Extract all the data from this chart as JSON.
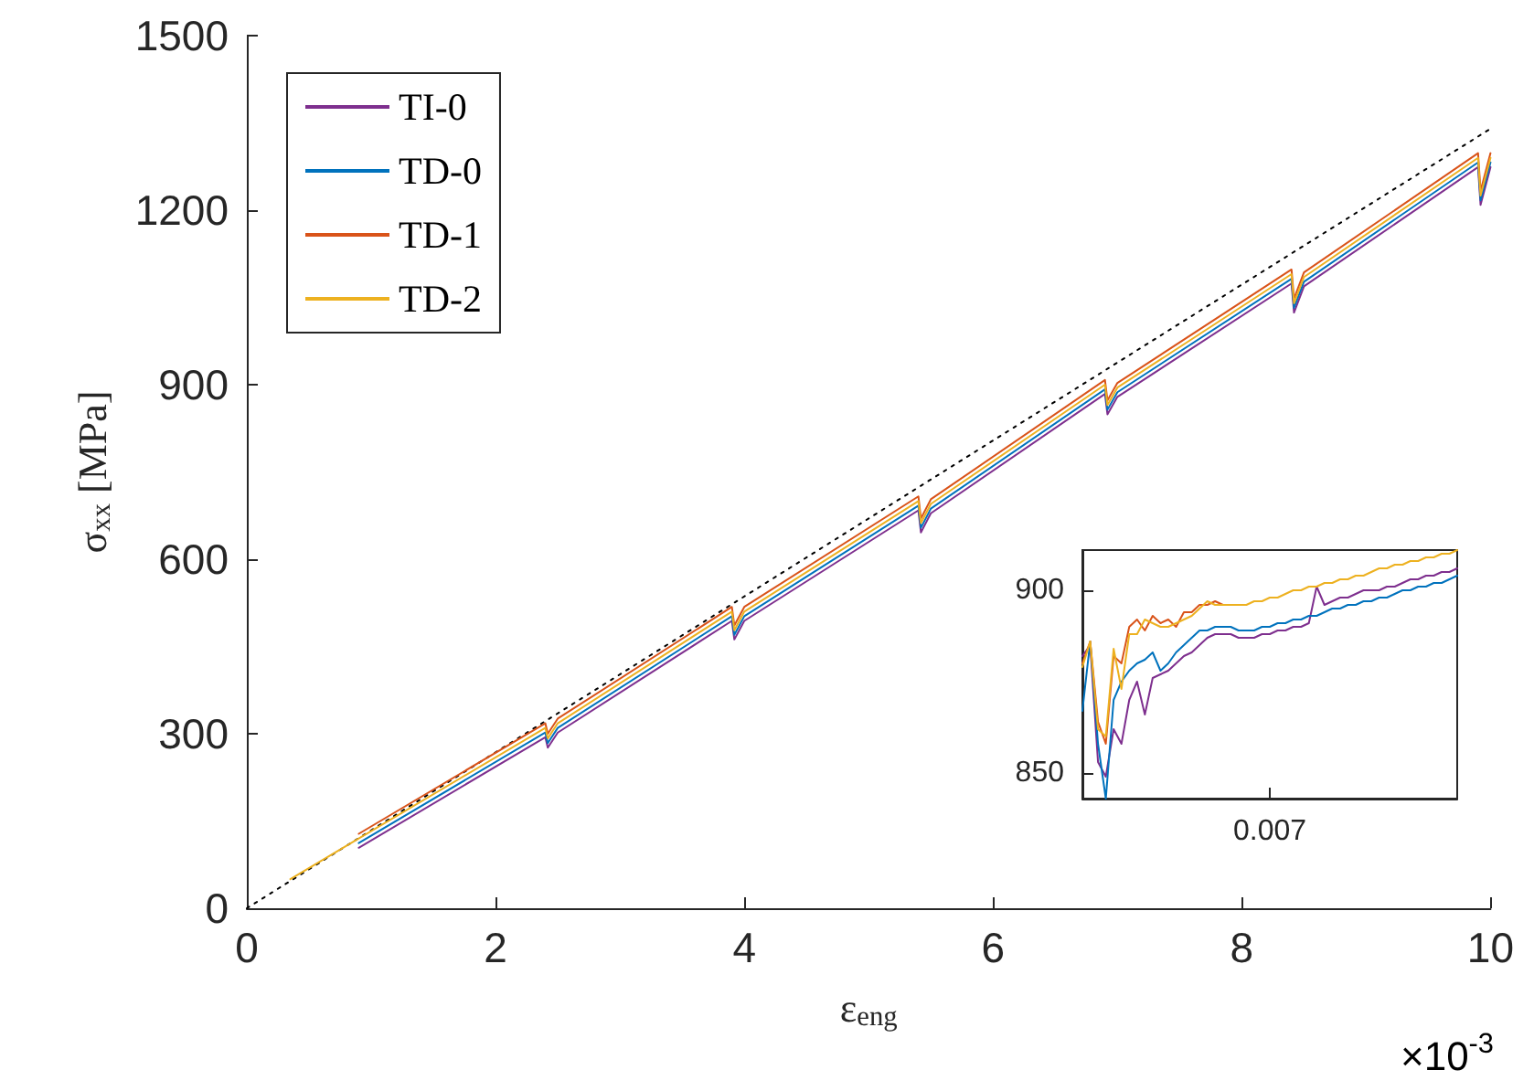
{
  "chart_data": [
    {
      "type": "line",
      "xlabel": "ε$_{eng}$",
      "ylabel": "σ$_{xx}$ [MPa]",
      "annotations": [
        "×10$^{-3}$"
      ],
      "xlim": [
        0,
        10
      ],
      "xticks": [
        0,
        2,
        4,
        6,
        8,
        10
      ],
      "ylim": [
        0,
        1500
      ],
      "yticks": [
        0,
        300,
        600,
        900,
        1200,
        1500
      ],
      "grid": false,
      "legend": "top left",
      "series": [
        {
          "name": "TI-0",
          "color": "#7e2f8e",
          "x": [
            0.9,
            2.4,
            2.42,
            2.5,
            3.9,
            3.92,
            4.0,
            5.4,
            5.42,
            5.5,
            6.9,
            6.92,
            7.0,
            8.4,
            8.42,
            8.5,
            9.9,
            9.92,
            10
          ],
          "values": [
            104,
            294,
            276,
            302,
            494,
            462,
            494,
            684,
            646,
            679,
            884,
            849,
            879,
            1074,
            1024,
            1069,
            1274,
            1209,
            1274
          ]
        },
        {
          "name": "TD-0",
          "color": "#0072bd",
          "x": [
            0.9,
            2.4,
            2.42,
            2.5,
            3.9,
            3.92,
            4.0,
            5.4,
            5.42,
            5.5,
            6.9,
            6.92,
            7.0,
            8.4,
            8.42,
            8.5,
            9.9,
            9.92,
            10
          ],
          "values": [
            112,
            302,
            284,
            310,
            502,
            470,
            502,
            692,
            654,
            687,
            892,
            857,
            887,
            1082,
            1032,
            1077,
            1282,
            1217,
            1282
          ]
        },
        {
          "name": "TD-1",
          "color": "#d95319",
          "x": [
            0.9,
            2.4,
            2.42,
            2.5,
            3.9,
            3.92,
            4.0,
            5.4,
            5.42,
            5.5,
            6.9,
            6.92,
            7.0,
            8.4,
            8.42,
            8.5,
            9.9,
            9.92,
            10
          ],
          "values": [
            128,
            318,
            300,
            326,
            518,
            486,
            518,
            708,
            670,
            703,
            908,
            873,
            903,
            1098,
            1048,
            1093,
            1298,
            1233,
            1298
          ]
        },
        {
          "name": "TD-2",
          "color": "#edb120",
          "x": [
            0.35,
            0.9,
            2.4,
            2.42,
            2.5,
            3.9,
            3.92,
            4.0,
            5.4,
            5.42,
            5.5,
            6.9,
            6.92,
            7.0,
            8.4,
            8.42,
            8.5,
            9.9,
            9.92,
            10
          ],
          "values": [
            50,
            120,
            310,
            292,
            318,
            510,
            478,
            510,
            700,
            662,
            695,
            900,
            865,
            895,
            1090,
            1040,
            1085,
            1290,
            1225,
            1290
          ]
        },
        {
          "color": "#000000",
          "line_style": "dotted",
          "x": [
            0,
            10
          ],
          "values": [
            0,
            1340
          ]
        }
      ]
    },
    {
      "type": "line",
      "categories": [
        null,
        null,
        null,
        null,
        null,
        null,
        null,
        null,
        null,
        null,
        null,
        null,
        null,
        null,
        null,
        null,
        null,
        null,
        null,
        null,
        null,
        null,
        null,
        null,
        "0.007",
        null,
        null,
        null,
        null,
        null,
        null,
        null,
        null,
        null,
        null,
        null,
        null,
        null,
        null,
        null,
        null,
        null,
        null,
        null,
        null,
        null,
        null,
        null,
        null
      ],
      "ylim": [
        843,
        911
      ],
      "yticks": [
        850,
        900
      ],
      "legend": false,
      "series": [
        {
          "color": "#7e2f8e",
          "values": [
            882,
            885,
            853,
            849,
            862,
            858,
            870,
            875,
            866,
            876,
            877,
            878,
            880,
            882,
            883,
            885,
            887,
            888,
            888,
            888,
            887,
            887,
            887,
            888,
            888,
            889,
            889,
            890,
            890,
            891,
            901,
            896,
            897,
            898,
            898,
            899,
            900,
            900,
            900,
            901,
            901,
            902,
            903,
            903,
            904,
            904,
            905,
            905,
            906
          ]
        },
        {
          "color": "#0072bd",
          "values": [
            867,
            886,
            858,
            843,
            870,
            875,
            878,
            880,
            881,
            883,
            878,
            880,
            883,
            885,
            887,
            889,
            889,
            890,
            890,
            890,
            889,
            889,
            889,
            890,
            890,
            891,
            891,
            892,
            892,
            893,
            893,
            894,
            895,
            895,
            896,
            896,
            897,
            897,
            898,
            898,
            899,
            900,
            900,
            901,
            901,
            902,
            902,
            903,
            904
          ]
        },
        {
          "color": "#d95319",
          "values": [
            880,
            886,
            864,
            858,
            882,
            880,
            890,
            892,
            889,
            893,
            891,
            892,
            890,
            894,
            894,
            896,
            896,
            897,
            896,
            896,
            896,
            null,
            null,
            null,
            null,
            null,
            null,
            null,
            null,
            null,
            null,
            null,
            null,
            null,
            null,
            null,
            null,
            null,
            null,
            null,
            null,
            null,
            null,
            null,
            null,
            null,
            null,
            null,
            null
          ]
        },
        {
          "color": "#edb120",
          "values": [
            879,
            886,
            862,
            860,
            884,
            873,
            888,
            888,
            892,
            891,
            890,
            890,
            891,
            892,
            893,
            895,
            897,
            896,
            896,
            896,
            896,
            896,
            897,
            897,
            898,
            898,
            899,
            900,
            900,
            901,
            901,
            902,
            902,
            903,
            903,
            904,
            904,
            905,
            906,
            906,
            907,
            907,
            908,
            908,
            909,
            909,
            910,
            910,
            911
          ]
        }
      ]
    }
  ]
}
